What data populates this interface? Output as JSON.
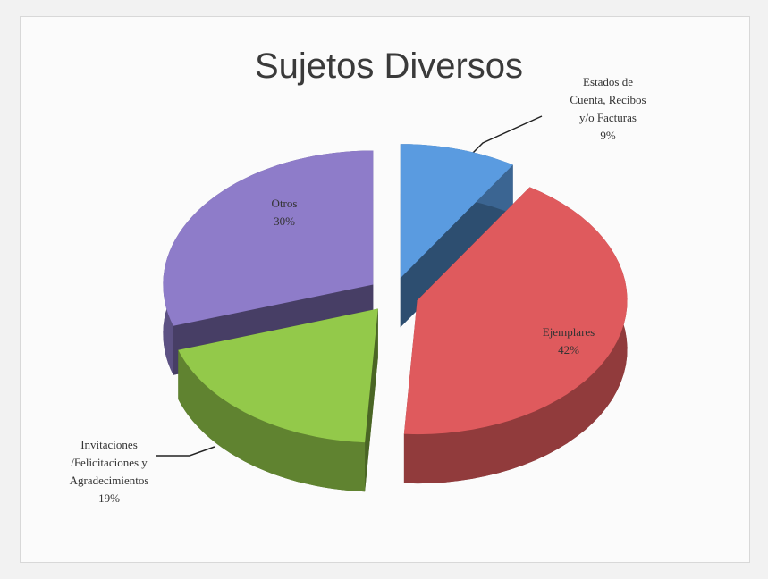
{
  "chart_data": {
    "type": "pie",
    "title": "Sujetos Diversos",
    "categories": [
      "Estados de\nCuenta, Recibos\ny/o Facturas",
      "Ejemplares",
      "Invitaciones\n/Felicitaciones y\nAgradecimientos",
      "Otros"
    ],
    "values": [
      9,
      42,
      19,
      30
    ],
    "value_labels": [
      "9%",
      "42%",
      "19%",
      "30%"
    ],
    "colors": [
      "#5a9be0",
      "#df5a5d",
      "#93c94a",
      "#8e7cc9"
    ]
  }
}
